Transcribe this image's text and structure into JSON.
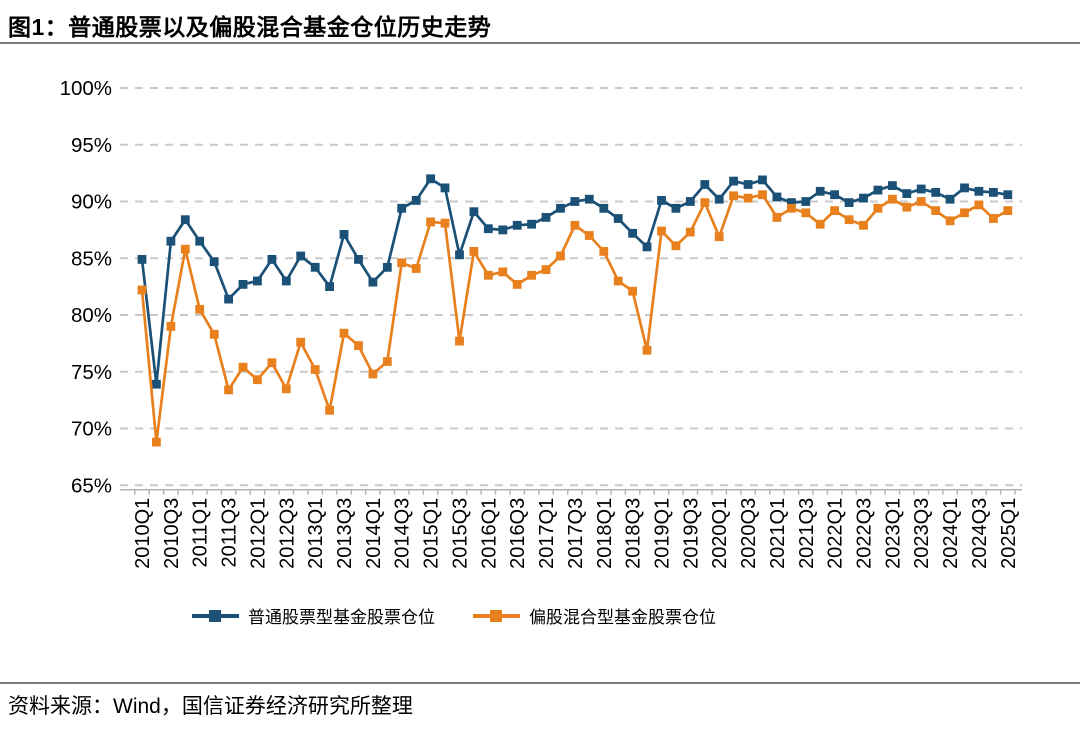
{
  "page": {
    "source": "资料来源：Wind，国信证券经济研究所整理"
  },
  "chart_data": {
    "type": "line",
    "title": "图1：普通股票以及偏股混合基金仓位历史走势",
    "xlabel": "",
    "ylabel": "",
    "ylim": [
      65,
      100
    ],
    "y_ticks": [
      "100%",
      "95%",
      "90%",
      "85%",
      "80%",
      "75%",
      "70%",
      "65%"
    ],
    "grid": "horizontal-dashed",
    "legend_position": "bottom",
    "x_label_every": 2,
    "categories": [
      "2010Q1",
      "2010Q2",
      "2010Q3",
      "2010Q4",
      "2011Q1",
      "2011Q2",
      "2011Q3",
      "2011Q4",
      "2012Q1",
      "2012Q2",
      "2012Q3",
      "2012Q4",
      "2013Q1",
      "2013Q2",
      "2013Q3",
      "2013Q4",
      "2014Q1",
      "2014Q2",
      "2014Q3",
      "2014Q4",
      "2015Q1",
      "2015Q2",
      "2015Q3",
      "2015Q4",
      "2016Q1",
      "2016Q2",
      "2016Q3",
      "2016Q4",
      "2017Q1",
      "2017Q2",
      "2017Q3",
      "2017Q4",
      "2018Q1",
      "2018Q2",
      "2018Q3",
      "2018Q4",
      "2019Q1",
      "2019Q2",
      "2019Q3",
      "2019Q4",
      "2020Q1",
      "2020Q2",
      "2020Q3",
      "2020Q4",
      "2021Q1",
      "2021Q2",
      "2021Q3",
      "2021Q4",
      "2022Q1",
      "2022Q2",
      "2022Q3",
      "2022Q4",
      "2023Q1",
      "2023Q2",
      "2023Q3",
      "2023Q4",
      "2024Q1",
      "2024Q2",
      "2024Q3",
      "2024Q4",
      "2025Q1"
    ],
    "series": [
      {
        "name": "普通股票型基金股票仓位",
        "color": "#1B5077",
        "values": [
          84.9,
          73.9,
          86.5,
          88.4,
          86.5,
          84.7,
          81.4,
          82.7,
          83.0,
          84.9,
          83.0,
          85.2,
          84.2,
          82.5,
          87.1,
          84.9,
          82.9,
          84.2,
          89.4,
          90.1,
          92.0,
          91.2,
          85.3,
          89.1,
          87.6,
          87.5,
          87.9,
          88.0,
          88.6,
          89.4,
          90.0,
          90.2,
          89.4,
          88.5,
          87.2,
          86.0,
          90.1,
          89.4,
          90.0,
          91.5,
          90.2,
          91.8,
          91.5,
          91.9,
          90.4,
          89.9,
          90.0,
          90.9,
          90.6,
          89.9,
          90.3,
          91.0,
          91.4,
          90.7,
          91.1,
          90.8,
          90.2,
          91.2,
          90.9,
          90.8,
          90.6
        ]
      },
      {
        "name": "偏股混合型基金股票仓位",
        "color": "#E8801E",
        "values": [
          82.2,
          68.8,
          79.0,
          85.8,
          80.5,
          78.3,
          73.4,
          75.4,
          74.3,
          75.8,
          73.5,
          77.6,
          75.2,
          71.6,
          78.4,
          77.3,
          74.8,
          75.9,
          84.6,
          84.1,
          88.2,
          88.1,
          77.7,
          85.6,
          83.5,
          83.8,
          82.7,
          83.5,
          84.0,
          85.2,
          87.9,
          87.0,
          85.6,
          83.0,
          82.1,
          76.9,
          87.4,
          86.1,
          87.3,
          89.9,
          86.9,
          90.5,
          90.3,
          90.6,
          88.6,
          89.4,
          89.0,
          88.0,
          89.2,
          88.4,
          87.9,
          89.4,
          90.2,
          89.5,
          90.0,
          89.2,
          88.3,
          89.0,
          89.7,
          88.5,
          89.2
        ]
      }
    ]
  }
}
